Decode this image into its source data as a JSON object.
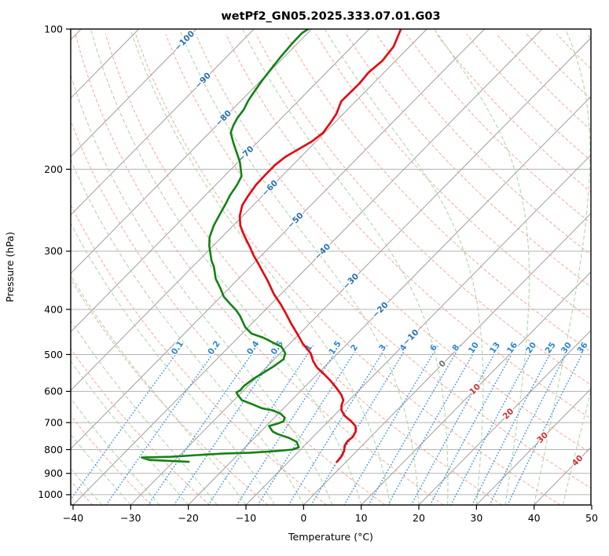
{
  "chart_data": {
    "type": "line",
    "variant": "skew-t-log-p",
    "title": "wetPf2_GN05.2025.333.07.01.G03",
    "xlabel": "Temperature (°C)",
    "ylabel": "Pressure (hPa)",
    "xlim": [
      -40,
      50
    ],
    "ylim_hpa": [
      1050,
      100
    ],
    "x_ticks": [
      -40,
      -30,
      -20,
      -10,
      0,
      10,
      20,
      30,
      40,
      50
    ],
    "y_ticks": [
      100,
      200,
      300,
      400,
      500,
      600,
      700,
      800,
      900,
      1000
    ],
    "grid": true,
    "skew_deg": 45,
    "legend": "none",
    "series": [
      {
        "name": "temperature",
        "color": "#e8000b",
        "units": [
          "hPa",
          "degC"
        ],
        "points": [
          [
            850,
            -1.6
          ],
          [
            829,
            -1.7
          ],
          [
            806,
            -2.2
          ],
          [
            785,
            -3.0
          ],
          [
            767,
            -3.3
          ],
          [
            752,
            -3.1
          ],
          [
            732,
            -3.5
          ],
          [
            712,
            -4.5
          ],
          [
            696,
            -6.0
          ],
          [
            677,
            -8.1
          ],
          [
            659,
            -9.6
          ],
          [
            644,
            -10.4
          ],
          [
            627,
            -11.0
          ],
          [
            610,
            -12.3
          ],
          [
            591,
            -14.2
          ],
          [
            569,
            -16.6
          ],
          [
            551,
            -18.8
          ],
          [
            533,
            -21.2
          ],
          [
            516,
            -23.0
          ],
          [
            497,
            -24.7
          ],
          [
            474,
            -27.7
          ],
          [
            451,
            -30.4
          ],
          [
            428,
            -33.3
          ],
          [
            406,
            -36.1
          ],
          [
            390,
            -38.3
          ],
          [
            371,
            -41.2
          ],
          [
            347,
            -44.6
          ],
          [
            330,
            -47.3
          ],
          [
            318,
            -49.3
          ],
          [
            306,
            -51.4
          ],
          [
            294,
            -53.4
          ],
          [
            283,
            -55.4
          ],
          [
            272,
            -57.4
          ],
          [
            264,
            -58.8
          ],
          [
            252,
            -60.5
          ],
          [
            239,
            -61.9
          ],
          [
            228,
            -62.5
          ],
          [
            216,
            -63.0
          ],
          [
            205,
            -63.1
          ],
          [
            196,
            -63.1
          ],
          [
            188,
            -62.7
          ],
          [
            181,
            -61.7
          ],
          [
            174,
            -60.7
          ],
          [
            167,
            -60.3
          ],
          [
            159,
            -60.7
          ],
          [
            152,
            -61.2
          ],
          [
            143,
            -62.5
          ],
          [
            131,
            -62.4
          ],
          [
            124,
            -62.7
          ],
          [
            117,
            -62.3
          ],
          [
            109,
            -62.8
          ],
          [
            100,
            -64.5
          ]
        ]
      },
      {
        "name": "dewpoint",
        "color": "#128312",
        "units": [
          "hPa",
          "degC"
        ],
        "points": [
          [
            850,
            -27.3
          ],
          [
            842,
            -34.4
          ],
          [
            832,
            -36.2
          ],
          [
            829,
            -31.3
          ],
          [
            822,
            -27.0
          ],
          [
            816,
            -22.8
          ],
          [
            813,
            -18.3
          ],
          [
            806,
            -14.1
          ],
          [
            800,
            -11.4
          ],
          [
            791,
            -10.7
          ],
          [
            770,
            -12.0
          ],
          [
            755,
            -14.0
          ],
          [
            741,
            -16.6
          ],
          [
            732,
            -17.9
          ],
          [
            712,
            -19.5
          ],
          [
            704,
            -18.5
          ],
          [
            696,
            -17.8
          ],
          [
            683,
            -18.2
          ],
          [
            670,
            -19.6
          ],
          [
            659,
            -21.5
          ],
          [
            652,
            -23.8
          ],
          [
            639,
            -26.2
          ],
          [
            627,
            -28.6
          ],
          [
            610,
            -30.3
          ],
          [
            603,
            -30.9
          ],
          [
            597,
            -30.6
          ],
          [
            584,
            -30.7
          ],
          [
            564,
            -30.3
          ],
          [
            547,
            -29.6
          ],
          [
            530,
            -28.9
          ],
          [
            512,
            -28.4
          ],
          [
            497,
            -29.1
          ],
          [
            481,
            -30.9
          ],
          [
            474,
            -32.5
          ],
          [
            460,
            -35.6
          ],
          [
            451,
            -38.3
          ],
          [
            437,
            -40.5
          ],
          [
            412,
            -43.5
          ],
          [
            401,
            -45.1
          ],
          [
            390,
            -47.0
          ],
          [
            376,
            -49.4
          ],
          [
            361,
            -51.4
          ],
          [
            344,
            -53.9
          ],
          [
            324,
            -56.3
          ],
          [
            314,
            -57.8
          ],
          [
            292,
            -60.7
          ],
          [
            280,
            -62.1
          ],
          [
            264,
            -63.4
          ],
          [
            249,
            -64.3
          ],
          [
            236,
            -65.1
          ],
          [
            228,
            -65.7
          ],
          [
            216,
            -66.3
          ],
          [
            207,
            -67.0
          ],
          [
            193,
            -69.7
          ],
          [
            176,
            -74.0
          ],
          [
            167,
            -76.3
          ],
          [
            161,
            -77.1
          ],
          [
            155,
            -77.7
          ],
          [
            149,
            -78.0
          ],
          [
            142,
            -78.8
          ],
          [
            137,
            -79.2
          ],
          [
            129,
            -79.8
          ],
          [
            122,
            -80.2
          ],
          [
            115,
            -80.6
          ],
          [
            108,
            -80.9
          ],
          [
            102,
            -81.0
          ],
          [
            100,
            -80.6
          ]
        ]
      }
    ],
    "background_lines": {
      "isobars": {
        "color": "#b3b3b3",
        "levels_hpa": [
          100,
          200,
          300,
          400,
          500,
          600,
          700,
          800,
          900,
          1000
        ]
      },
      "isotherms": {
        "color": "#9e9e9e",
        "min_c": -120,
        "max_c": 50,
        "step_c": 10
      },
      "isotherm_labels": {
        "values": [
          -100,
          -90,
          -80,
          -70,
          -60,
          -50,
          -40,
          -30,
          -20,
          -10,
          0,
          10,
          20,
          30,
          40
        ],
        "negative_color": "#2a71ad",
        "zero_color": "#6e6e6e",
        "positive_color": "#cf2f2f"
      },
      "dry_adiabats": {
        "color": "#f2a28f",
        "theta_min_c": -40,
        "theta_max_c": 190,
        "step_c": 10,
        "style": "dashed"
      },
      "moist_adiabats": {
        "color": "#a6d3a0",
        "start_min_c": -40,
        "start_max_c": 50,
        "step_c": 5,
        "style": "dashed"
      },
      "mixing_ratio": {
        "color": "#4090d8",
        "label_color": "#2f86cf",
        "style": "dotted",
        "values_g_kg": [
          0.1,
          0.2,
          0.4,
          0.6,
          1,
          1.5,
          2,
          3,
          4,
          6,
          8,
          10,
          13,
          16,
          20,
          25,
          30,
          36
        ]
      }
    }
  }
}
